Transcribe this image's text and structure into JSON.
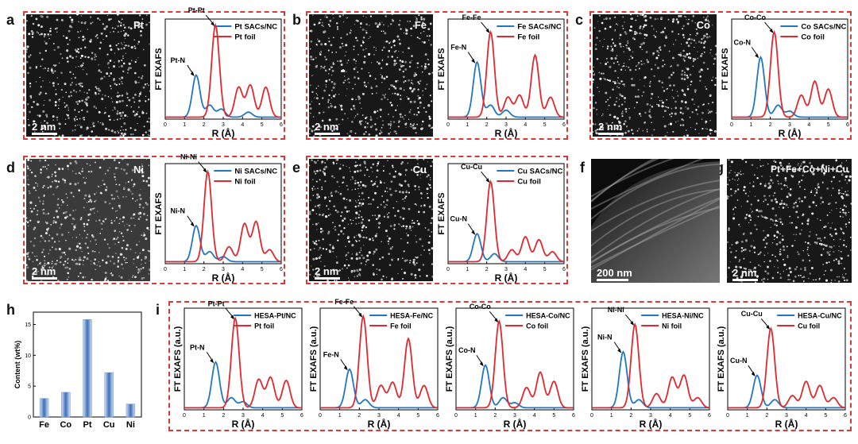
{
  "colors": {
    "sac": "#1f77c4",
    "foil": "#e0282e",
    "frame": "#d83a3a"
  },
  "panel_letters": [
    "a",
    "b",
    "c",
    "d",
    "e",
    "f",
    "g",
    "h",
    "i"
  ],
  "stem_images": [
    {
      "id": "a",
      "element": "Pt",
      "scale": "2 nm"
    },
    {
      "id": "b",
      "element": "Fe",
      "scale": "2 nm"
    },
    {
      "id": "c",
      "element": "Co",
      "scale": "2 nm"
    },
    {
      "id": "d",
      "element": "Ni",
      "scale": "2 nm"
    },
    {
      "id": "e",
      "element": "Cu",
      "scale": "2 nm"
    },
    {
      "id": "f",
      "element": "",
      "scale": "200 nm"
    },
    {
      "id": "g",
      "element": "Pt+Fe+Co+Ni+Cu",
      "scale": "2 nm"
    }
  ],
  "chart_data": [
    {
      "type": "line",
      "panel": "a",
      "xlabel": "R (Å)",
      "ylabel": "FT EXAFS",
      "xlim": [
        0,
        6
      ],
      "x_ticks": [
        0,
        1,
        2,
        3,
        4,
        5,
        6
      ],
      "series": [
        {
          "name": "Pt SACs/NC",
          "peaks": [
            [
              1.6,
              0.42
            ],
            [
              2.3,
              0.12
            ],
            [
              2.9,
              0.08
            ],
            [
              4.3,
              0.05
            ]
          ]
        },
        {
          "name": "Pt foil",
          "peaks": [
            [
              2.6,
              0.92
            ],
            [
              3.8,
              0.3
            ],
            [
              4.4,
              0.32
            ],
            [
              5.2,
              0.3
            ]
          ]
        }
      ],
      "annotations": [
        {
          "text": "Pt-N",
          "x": 1.55,
          "y": 0.42
        },
        {
          "text": "Pt-Pt",
          "x": 2.6,
          "y": 0.92
        }
      ]
    },
    {
      "type": "line",
      "panel": "b",
      "xlabel": "R (Å)",
      "ylabel": "FT EXAFS",
      "xlim": [
        0,
        6
      ],
      "x_ticks": [
        0,
        1,
        2,
        3,
        4,
        5,
        6
      ],
      "series": [
        {
          "name": "Fe SACs/NC",
          "peaks": [
            [
              1.5,
              0.55
            ],
            [
              2.2,
              0.12
            ],
            [
              3.0,
              0.07
            ]
          ]
        },
        {
          "name": "Fe foil",
          "peaks": [
            [
              2.2,
              0.85
            ],
            [
              3.1,
              0.2
            ],
            [
              3.7,
              0.22
            ],
            [
              4.5,
              0.62
            ],
            [
              5.3,
              0.2
            ]
          ]
        }
      ],
      "annotations": [
        {
          "text": "Fe-N",
          "x": 1.45,
          "y": 0.55
        },
        {
          "text": "Fe-Fe",
          "x": 2.2,
          "y": 0.85
        }
      ]
    },
    {
      "type": "line",
      "panel": "c",
      "xlabel": "R (Å)",
      "ylabel": "FT EXAFS",
      "xlim": [
        0,
        6
      ],
      "x_ticks": [
        0,
        1,
        2,
        3,
        4,
        5,
        6
      ],
      "series": [
        {
          "name": "Co SACs/NC",
          "peaks": [
            [
              1.5,
              0.6
            ],
            [
              2.4,
              0.12
            ],
            [
              3.0,
              0.06
            ]
          ]
        },
        {
          "name": "Co foil",
          "peaks": [
            [
              2.2,
              0.85
            ],
            [
              3.6,
              0.22
            ],
            [
              4.3,
              0.36
            ],
            [
              5.0,
              0.28
            ]
          ]
        }
      ],
      "annotations": [
        {
          "text": "Co-N",
          "x": 1.45,
          "y": 0.6
        },
        {
          "text": "Co-Co",
          "x": 2.2,
          "y": 0.85
        }
      ]
    },
    {
      "type": "line",
      "panel": "d",
      "xlabel": "R (Å)",
      "ylabel": "FT EXAFS",
      "xlim": [
        0,
        6
      ],
      "x_ticks": [
        0,
        1,
        2,
        3,
        4,
        5,
        6
      ],
      "series": [
        {
          "name": "Ni SACs/NC",
          "peaks": [
            [
              1.6,
              0.36
            ],
            [
              2.3,
              0.1
            ],
            [
              3.0,
              0.05
            ]
          ]
        },
        {
          "name": "Ni foil",
          "peaks": [
            [
              2.2,
              0.9
            ],
            [
              3.3,
              0.15
            ],
            [
              4.1,
              0.38
            ],
            [
              4.7,
              0.4
            ],
            [
              5.4,
              0.12
            ]
          ]
        }
      ],
      "annotations": [
        {
          "text": "Ni-N",
          "x": 1.55,
          "y": 0.36
        },
        {
          "text": "Ni-Ni",
          "x": 2.2,
          "y": 0.9
        }
      ]
    },
    {
      "type": "line",
      "panel": "e",
      "xlabel": "R (Å)",
      "ylabel": "FT EXAFS",
      "xlim": [
        0,
        6
      ],
      "x_ticks": [
        0,
        1,
        2,
        3,
        4,
        5,
        6
      ],
      "series": [
        {
          "name": "Cu SACs/NC",
          "peaks": [
            [
              1.5,
              0.28
            ],
            [
              2.4,
              0.08
            ]
          ]
        },
        {
          "name": "Cu foil",
          "peaks": [
            [
              2.2,
              0.8
            ],
            [
              3.3,
              0.12
            ],
            [
              4.0,
              0.25
            ],
            [
              4.7,
              0.22
            ],
            [
              5.4,
              0.1
            ]
          ]
        }
      ],
      "annotations": [
        {
          "text": "Cu-N",
          "x": 1.45,
          "y": 0.28
        },
        {
          "text": "Cu-Cu",
          "x": 2.2,
          "y": 0.8
        }
      ]
    },
    {
      "type": "bar",
      "panel": "h",
      "ylabel": "Content (wt%)",
      "categories": [
        "Fe",
        "Co",
        "Pt",
        "Cu",
        "Ni"
      ],
      "values": [
        3.0,
        4.0,
        15.8,
        7.2,
        2.1
      ],
      "ylim": [
        0,
        17
      ],
      "y_ticks": [
        0,
        5,
        10,
        15
      ]
    },
    {
      "type": "line",
      "panel": "i-1",
      "xlabel": "R (Å)",
      "ylabel": "FT EXAFS (a.u.)",
      "xlim": [
        0,
        6
      ],
      "x_ticks": [
        0,
        1,
        2,
        3,
        4,
        5,
        6
      ],
      "series": [
        {
          "name": "HESA-Pt/NC",
          "peaks": [
            [
              1.6,
              0.45
            ],
            [
              2.4,
              0.1
            ],
            [
              3.0,
              0.06
            ]
          ]
        },
        {
          "name": "Pt foil",
          "peaks": [
            [
              2.6,
              0.88
            ],
            [
              3.8,
              0.28
            ],
            [
              4.4,
              0.3
            ],
            [
              5.2,
              0.27
            ]
          ]
        }
      ],
      "annotations": [
        {
          "text": "Pt-N",
          "x": 1.55,
          "y": 0.45
        },
        {
          "text": "Pt-Pt",
          "x": 2.6,
          "y": 0.88
        }
      ]
    },
    {
      "type": "line",
      "panel": "i-2",
      "xlabel": "R (Å)",
      "ylabel": "FT EXAFS (a.u.)",
      "xlim": [
        0,
        6
      ],
      "x_ticks": [
        0,
        1,
        2,
        3,
        4,
        5,
        6
      ],
      "series": [
        {
          "name": "HESA-Fe/NC",
          "peaks": [
            [
              1.5,
              0.38
            ],
            [
              2.3,
              0.08
            ]
          ]
        },
        {
          "name": "Fe foil",
          "peaks": [
            [
              2.2,
              0.9
            ],
            [
              3.1,
              0.22
            ],
            [
              3.7,
              0.25
            ],
            [
              4.5,
              0.68
            ],
            [
              5.3,
              0.22
            ]
          ]
        }
      ],
      "annotations": [
        {
          "text": "Fe-N",
          "x": 1.45,
          "y": 0.38
        },
        {
          "text": "Fe-Fe",
          "x": 2.2,
          "y": 0.9
        }
      ]
    },
    {
      "type": "line",
      "panel": "i-3",
      "xlabel": "R (Å)",
      "ylabel": "FT EXAFS (a.u.)",
      "xlim": [
        0,
        6
      ],
      "x_ticks": [
        0,
        1,
        2,
        3,
        4,
        5,
        6
      ],
      "series": [
        {
          "name": "HESA-Co/NC",
          "peaks": [
            [
              1.5,
              0.42
            ],
            [
              2.4,
              0.1
            ],
            [
              3.0,
              0.05
            ]
          ]
        },
        {
          "name": "Co foil",
          "peaks": [
            [
              2.2,
              0.85
            ],
            [
              3.6,
              0.2
            ],
            [
              4.3,
              0.35
            ],
            [
              5.0,
              0.26
            ]
          ]
        }
      ],
      "annotations": [
        {
          "text": "Co-N",
          "x": 1.45,
          "y": 0.42
        },
        {
          "text": "Co-Co",
          "x": 2.2,
          "y": 0.85
        }
      ]
    },
    {
      "type": "line",
      "panel": "i-4",
      "xlabel": "R (Å)",
      "ylabel": "FT EXAFS (a.u.)",
      "xlim": [
        0,
        6
      ],
      "x_ticks": [
        0,
        1,
        2,
        3,
        4,
        5,
        6
      ],
      "series": [
        {
          "name": "HESA-Ni/NC",
          "peaks": [
            [
              1.6,
              0.55
            ],
            [
              2.4,
              0.08
            ]
          ]
        },
        {
          "name": "Ni foil",
          "peaks": [
            [
              2.2,
              0.82
            ],
            [
              3.3,
              0.14
            ],
            [
              4.1,
              0.3
            ],
            [
              4.7,
              0.32
            ],
            [
              5.4,
              0.1
            ]
          ]
        }
      ],
      "annotations": [
        {
          "text": "Ni-N",
          "x": 1.55,
          "y": 0.55
        },
        {
          "text": "Ni-Ni",
          "x": 2.2,
          "y": 0.82
        }
      ]
    },
    {
      "type": "line",
      "panel": "i-5",
      "xlabel": "R (Å)",
      "ylabel": "FT EXAFS (a.u.)",
      "xlim": [
        0,
        6
      ],
      "x_ticks": [
        0,
        1,
        2,
        3,
        4,
        5,
        6
      ],
      "series": [
        {
          "name": "HESA-Cu/NC",
          "peaks": [
            [
              1.5,
              0.32
            ],
            [
              2.4,
              0.08
            ]
          ]
        },
        {
          "name": "Cu foil",
          "peaks": [
            [
              2.2,
              0.78
            ],
            [
              3.3,
              0.12
            ],
            [
              4.0,
              0.26
            ],
            [
              4.7,
              0.22
            ],
            [
              5.4,
              0.1
            ]
          ]
        }
      ],
      "annotations": [
        {
          "text": "Cu-N",
          "x": 1.45,
          "y": 0.32
        },
        {
          "text": "Cu-Cu",
          "x": 2.2,
          "y": 0.78
        }
      ]
    }
  ]
}
